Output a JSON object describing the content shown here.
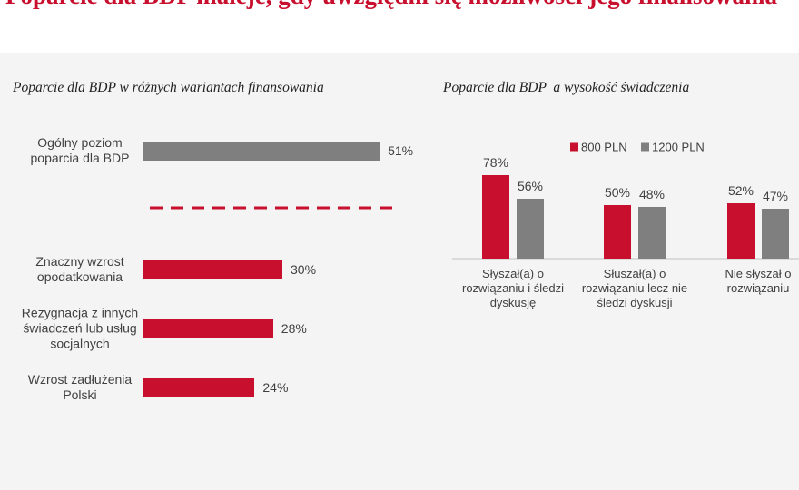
{
  "title": "Poparcie dla BDP maleje, gdy uwzględni się możliwości jego finansowania",
  "chart_data": [
    {
      "type": "hbar",
      "title": "Poparcie dla BDP w różnych wariantach finansowania",
      "categories": [
        "Ogólny poziom poparcia dla BDP",
        "Znaczny wzrost opodatkowania",
        "Rezygnacja z innych świadczeń lub usług socjalnych",
        "Wzrost zadłużenia Polski"
      ],
      "values": [
        51,
        30,
        28,
        24
      ],
      "value_labels": [
        "51%",
        "30%",
        "28%",
        "24%"
      ],
      "colors": [
        "#7f7f7f",
        "#c8102e",
        "#c8102e",
        "#c8102e"
      ]
    },
    {
      "type": "groupbar",
      "title": "Poparcie dla BDP  a wysokość świadczenia",
      "categories": [
        "Słyszał(a) o rozwiązaniu i śledzi dyskusję",
        "Słuszał(a) o rozwiązaniu lecz nie śledzi dyskusji",
        "Nie słyszał o rozwiązaniu"
      ],
      "series": [
        {
          "name": "800 PLN",
          "color": "#c8102e",
          "values": [
            78,
            50,
            52
          ],
          "value_labels": [
            "78%",
            "50%",
            "52%"
          ]
        },
        {
          "name": "1200 PLN",
          "color": "#7f7f7f",
          "values": [
            56,
            48,
            47
          ],
          "value_labels": [
            "56%",
            "48%",
            "47%"
          ]
        }
      ]
    }
  ]
}
